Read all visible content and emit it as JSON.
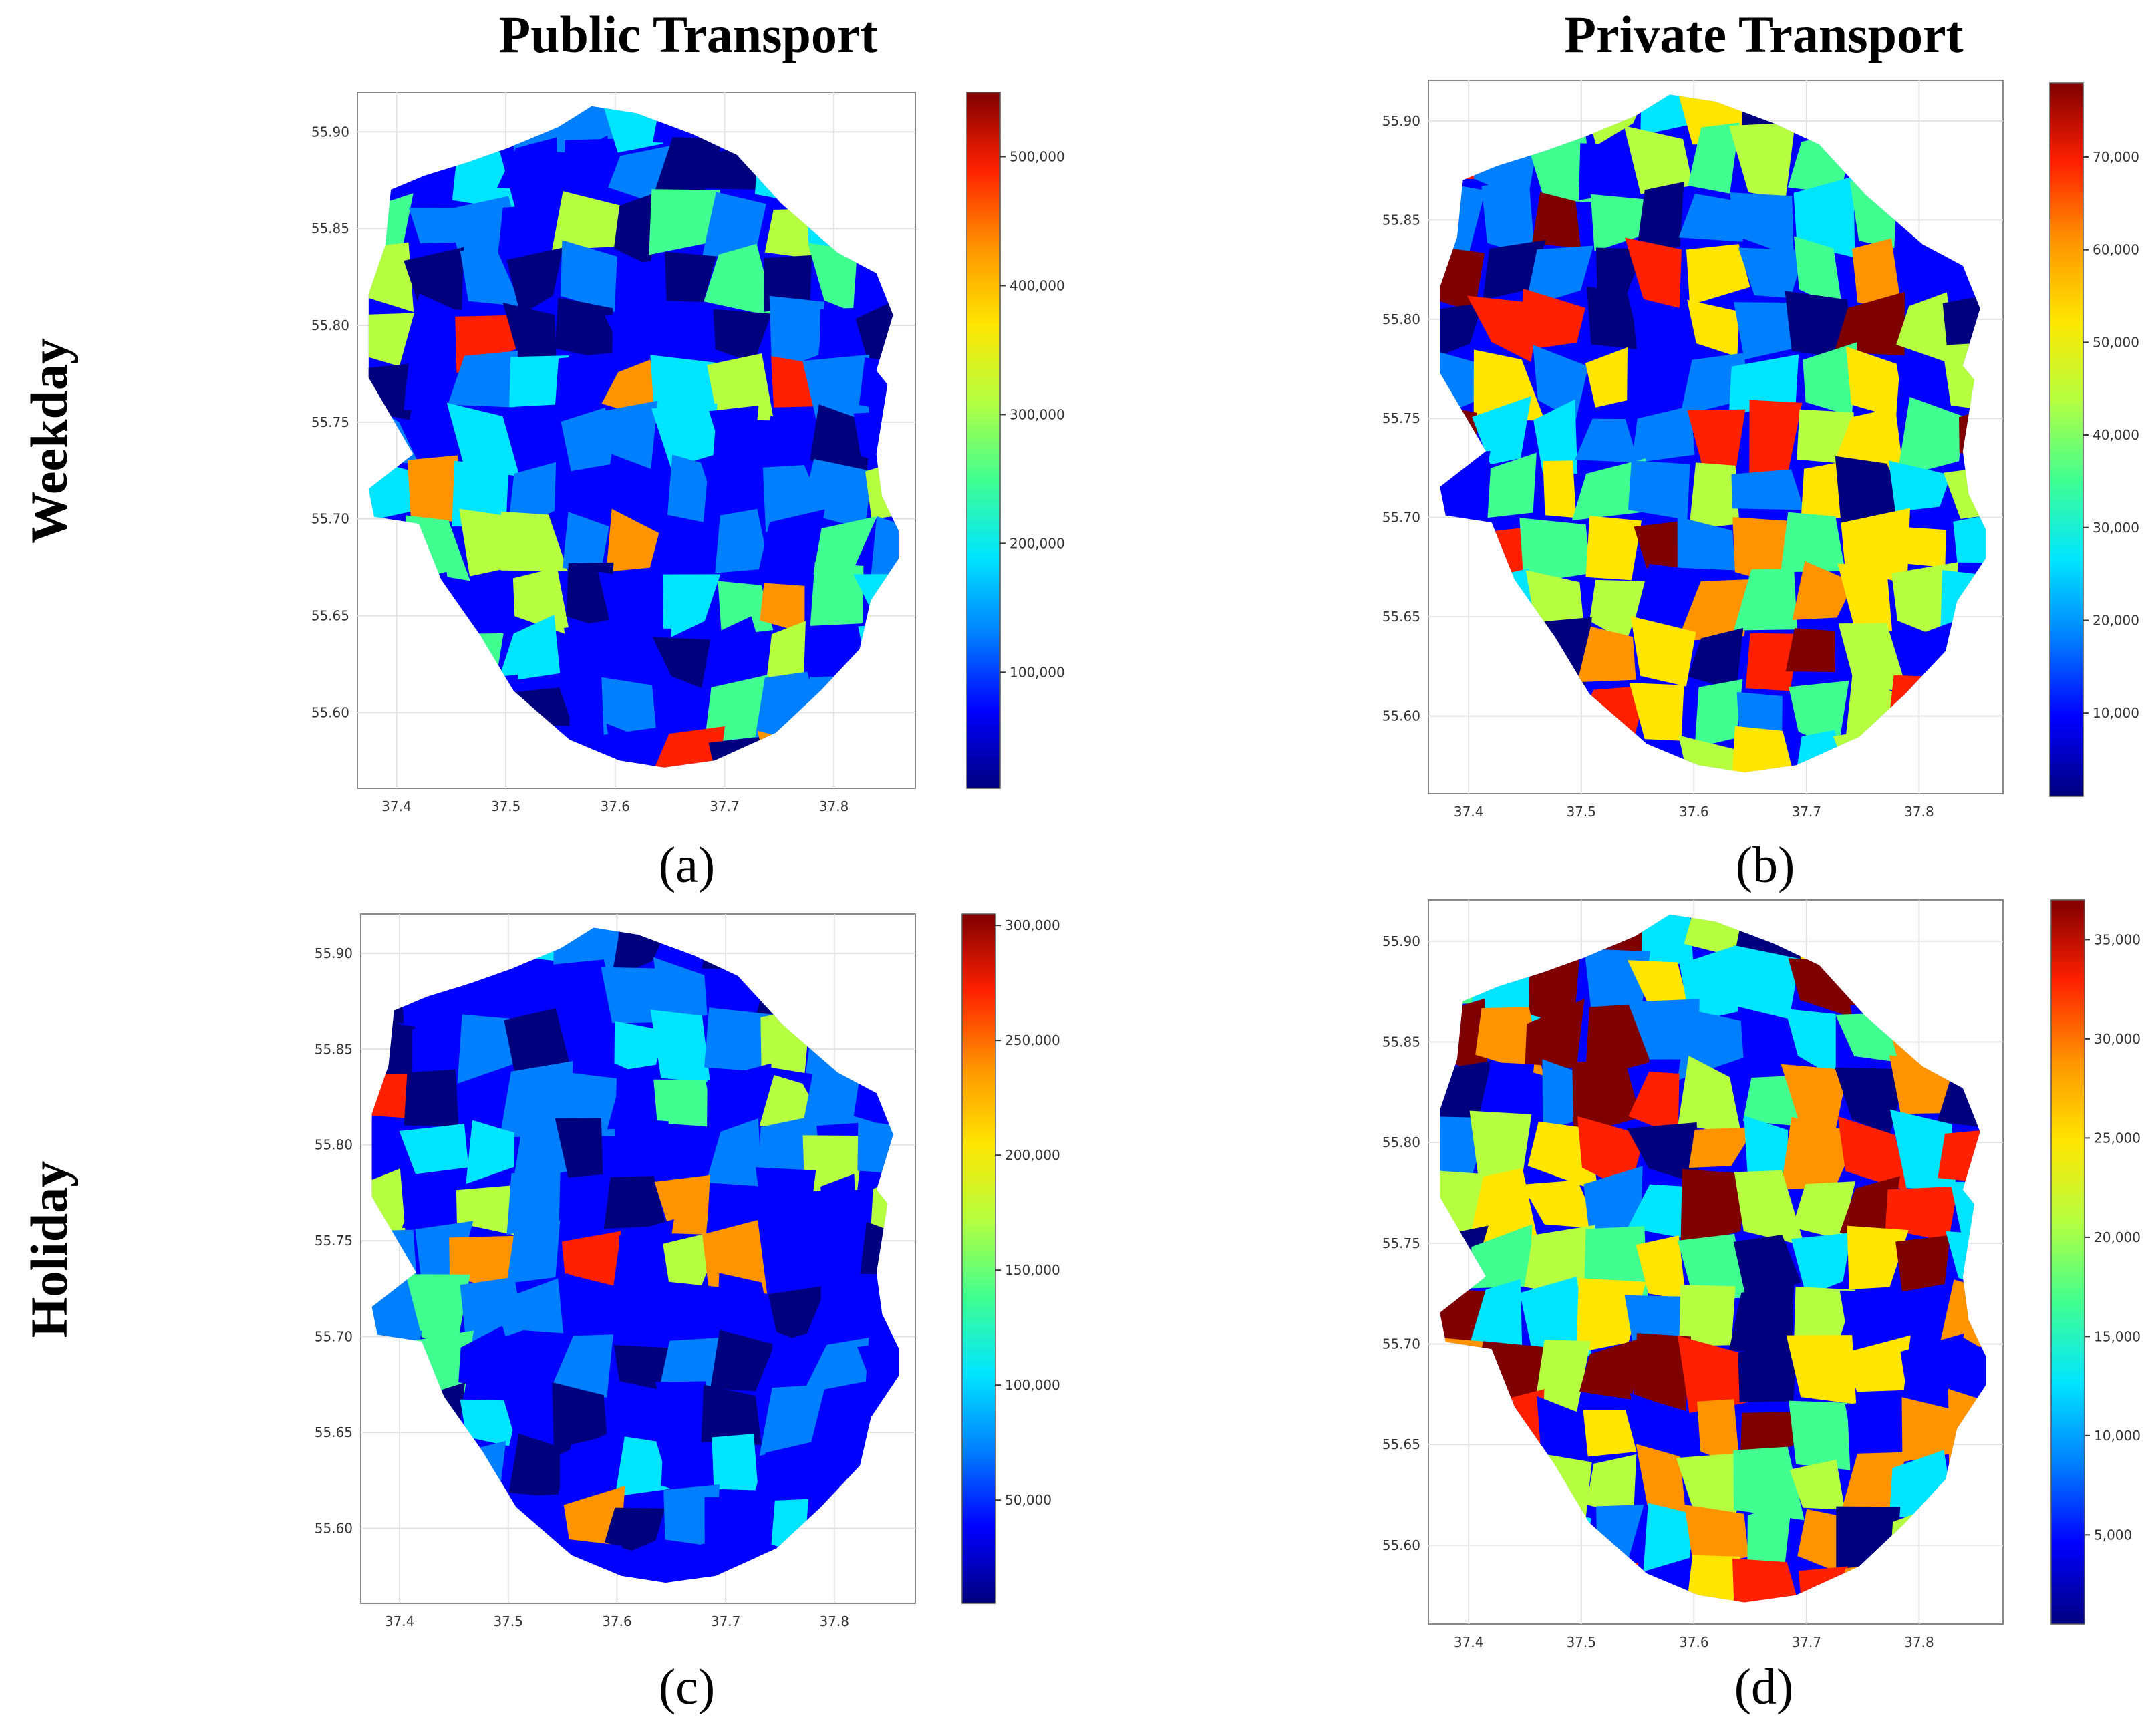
{
  "column_titles": [
    "Public Transport",
    "Private Transport"
  ],
  "row_titles": [
    "Weekday",
    "Holiday"
  ],
  "colormap": [
    "#00007f",
    "#0000ff",
    "#0080ff",
    "#00e5ff",
    "#40ff90",
    "#b5ff40",
    "#ffe500",
    "#ff9400",
    "#ff2000",
    "#7f0000"
  ],
  "panels": [
    {
      "label": "(a)",
      "x_ticks": [
        "37.4",
        "37.5",
        "37.6",
        "37.7",
        "37.8"
      ],
      "y_ticks": [
        "55.90",
        "55.85",
        "55.80",
        "55.75",
        "55.70",
        "55.65",
        "55.60"
      ],
      "colorbar_ticks": [
        "500,000",
        "400,000",
        "300,000",
        "200,000",
        "100,000"
      ],
      "colorbar_values": [
        500000,
        400000,
        300000,
        200000,
        100000
      ],
      "colorbar_range": [
        10000,
        550000
      ]
    },
    {
      "label": "(b)",
      "x_ticks": [
        "37.4",
        "37.5",
        "37.6",
        "37.7",
        "37.8"
      ],
      "y_ticks": [
        "55.90",
        "55.85",
        "55.80",
        "55.75",
        "55.70",
        "55.65",
        "55.60"
      ],
      "colorbar_ticks": [
        "70,000",
        "60,000",
        "50,000",
        "40,000",
        "30,000",
        "20,000",
        "10,000"
      ],
      "colorbar_values": [
        70000,
        60000,
        50000,
        40000,
        30000,
        20000,
        10000
      ],
      "colorbar_range": [
        1000,
        78000
      ]
    },
    {
      "label": "(c)",
      "x_ticks": [
        "37.4",
        "37.5",
        "37.6",
        "37.7",
        "37.8"
      ],
      "y_ticks": [
        "55.90",
        "55.85",
        "55.80",
        "55.75",
        "55.70",
        "55.65",
        "55.60"
      ],
      "colorbar_ticks": [
        "300,000",
        "250,000",
        "200,000",
        "150,000",
        "100,000",
        "50,000"
      ],
      "colorbar_values": [
        300000,
        250000,
        200000,
        150000,
        100000,
        50000
      ],
      "colorbar_range": [
        5000,
        305000
      ]
    },
    {
      "label": "(d)",
      "x_ticks": [
        "37.4",
        "37.5",
        "37.6",
        "37.7",
        "37.8"
      ],
      "y_ticks": [
        "55.90",
        "55.85",
        "55.80",
        "55.75",
        "55.70",
        "55.65",
        "55.60"
      ],
      "colorbar_ticks": [
        "35,000",
        "30,000",
        "25,000",
        "20,000",
        "15,000",
        "10,000",
        "5,000"
      ],
      "colorbar_values": [
        35000,
        30000,
        25000,
        20000,
        15000,
        10000,
        5000
      ],
      "colorbar_range": [
        500,
        37000
      ]
    }
  ]
}
